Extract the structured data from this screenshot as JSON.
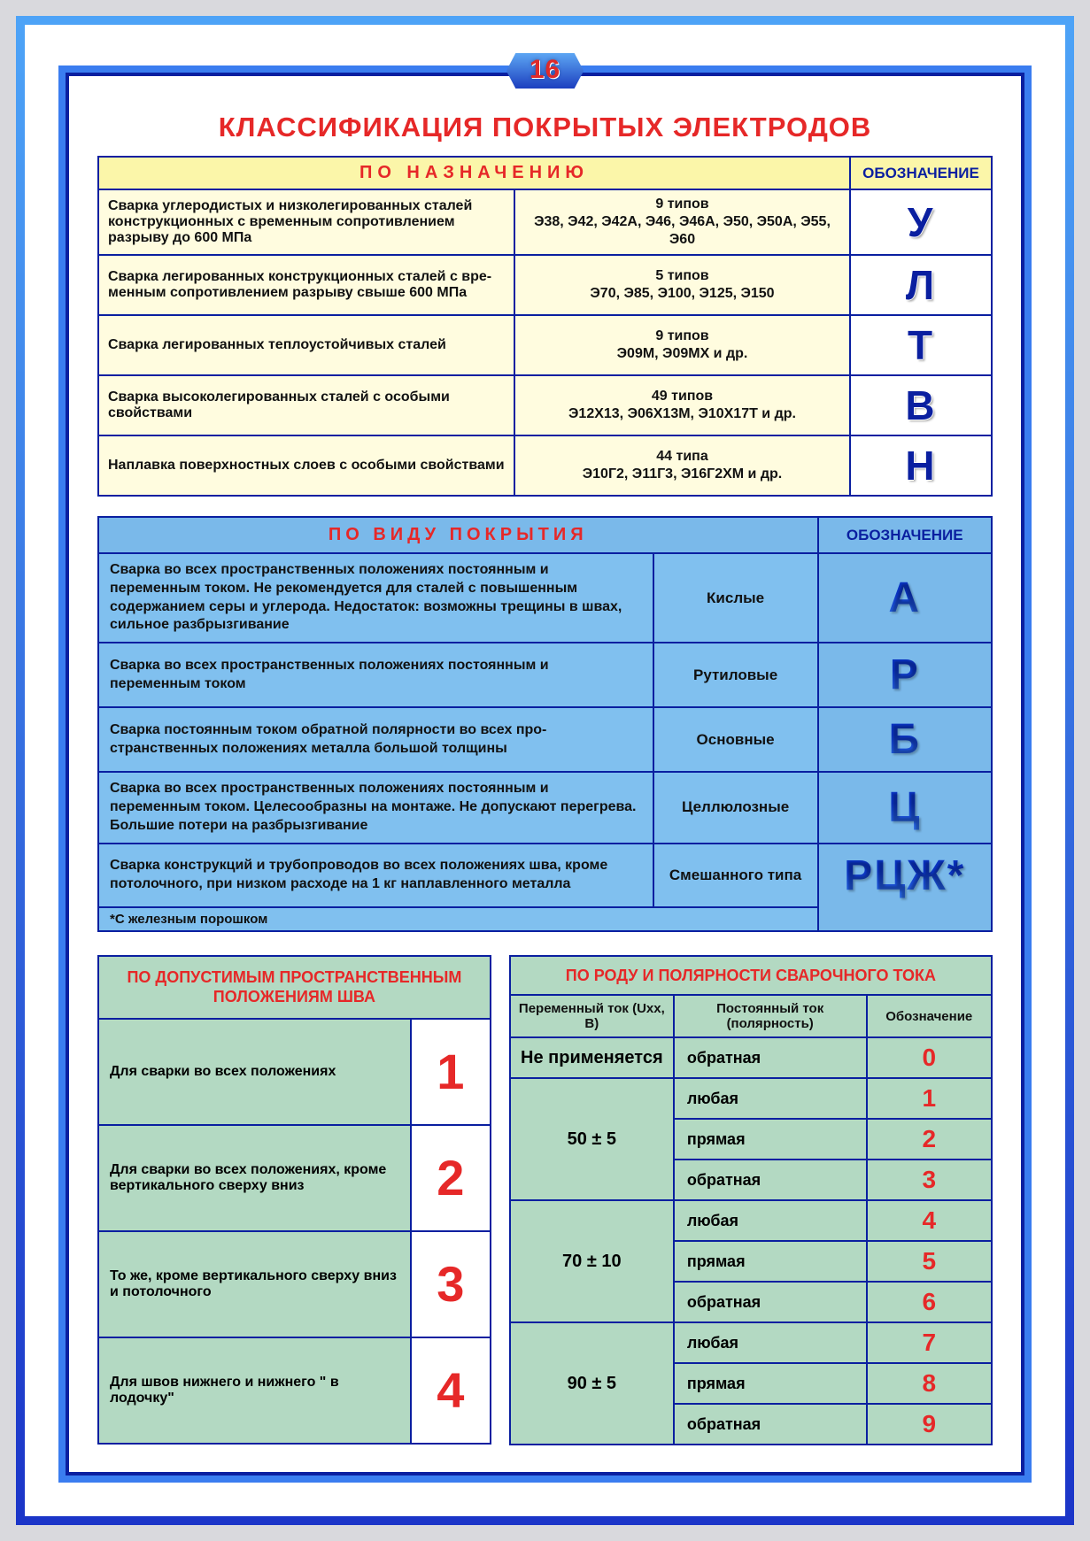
{
  "page_number": "16",
  "title": "КЛАССИФИКАЦИЯ ПОКРЫТЫХ ЭЛЕКТРОДОВ",
  "colors": {
    "outer_border": "#3a7df0",
    "inner_border": "#0a1fa0",
    "title_red": "#e62828",
    "yellow_hdr": "#fbf6a9",
    "yellow_row": "#fffcdf",
    "blue_row": "#80c0ef",
    "blue_hdr": "#7ab9ea",
    "green": "#b3d9c2"
  },
  "table1": {
    "header_left": "ПО   НАЗНАЧЕНИЮ",
    "header_right": "ОБОЗНАЧЕНИЕ",
    "rows": [
      {
        "desc": "Сварка углеродистых и низколегированных сталей конструкционных с временным сопротивлением разрыву до 600 МПа",
        "types_line1": "9 типов",
        "types_line2": "Э38, Э42, Э42А, Э46, Э46А, Э50, Э50А, Э55, Э60",
        "mark": "У"
      },
      {
        "desc": "Сварка легированных конструкционных сталей с вре­менным сопротивлением разрыву свыше 600 МПа",
        "types_line1": "5 типов",
        "types_line2": "Э70, Э85, Э100, Э125, Э150",
        "mark": "Л"
      },
      {
        "desc": "Сварка легированных теплоустойчивых сталей",
        "types_line1": "9 типов",
        "types_line2": "Э09М, Э09МХ и др.",
        "mark": "Т"
      },
      {
        "desc": "Сварка высоколегированных сталей с особыми свойствами",
        "types_line1": "49 типов",
        "types_line2": "Э12Х13, Э06Х13М, Э10Х17Т и др.",
        "mark": "В"
      },
      {
        "desc": "Наплавка поверхностных слоев с особыми свойствами",
        "types_line1": "44 типа",
        "types_line2": "Э10Г2, Э11Г3, Э16Г2ХМ и др.",
        "mark": "Н"
      }
    ]
  },
  "table2": {
    "header_left": "ПО  ВИДУ  ПОКРЫТИЯ",
    "header_right": "ОБОЗНАЧЕНИЕ",
    "rows": [
      {
        "desc": "Сварка во всех пространственных положениях постоянным и переменным током. Не рекомендуется для сталей с повы­шенным содержанием серы и углерода. Недостаток: возмо­жны трещины в швах, сильное разбрызгивание",
        "kind": "Кислые",
        "mark": "А"
      },
      {
        "desc": "Сварка во всех пространственных положениях постоянным и переменным током",
        "kind": "Рутиловые",
        "mark": "Р"
      },
      {
        "desc": "Сварка постоянным током обратной полярности во всех про­странственных положениях металла большой толщины",
        "kind": "Основные",
        "mark": "Б"
      },
      {
        "desc": "Сварка во всех пространственных положениях постоянным и переменным током. Целесообразны на монтаже. Не допус­кают перегрева. Большие потери на разбрызгивание",
        "kind": "Целлюлозные",
        "mark": "Ц"
      },
      {
        "desc": "Сварка конструкций и трубопроводов во всех положениях шва, кроме потолочного, при низком расходе на 1 кг на­плавленного металла",
        "kind": "Смешанного типа",
        "mark": "РЦЖ*"
      }
    ],
    "footnote": "*С железным порошком"
  },
  "table3": {
    "header": "ПО ДОПУСТИМЫМ ПРОСТРАНСТВЕННЫМ ПОЛОЖЕНИЯМ ШВА",
    "rows": [
      {
        "desc": "Для сварки во всех положениях",
        "num": "1"
      },
      {
        "desc": "Для сварки во всех положениях, кроме вертикального сверху вниз",
        "num": "2"
      },
      {
        "desc": "То же, кроме вертикального сверху вниз и потолочного",
        "num": "3"
      },
      {
        "desc": "Для швов нижнего и нижнего \" в лодочку\"",
        "num": "4"
      }
    ]
  },
  "table4": {
    "header": "ПО РОДУ И ПОЛЯРНОСТИ СВАРОЧНОГО ТОКА",
    "col1": "Переменный ток (Uхх, В)",
    "col2": "Постоянный ток (полярность)",
    "col3": "Обозна­чение",
    "groups": [
      {
        "ac": "Не применяется",
        "ac_span": 1,
        "rows": [
          {
            "pol": "обратная",
            "num": "0"
          }
        ]
      },
      {
        "ac": "50 ± 5",
        "ac_span": 3,
        "rows": [
          {
            "pol": "любая",
            "num": "1"
          },
          {
            "pol": "прямая",
            "num": "2"
          },
          {
            "pol": "обратная",
            "num": "3"
          }
        ]
      },
      {
        "ac": "70 ± 10",
        "ac_span": 3,
        "rows": [
          {
            "pol": "любая",
            "num": "4"
          },
          {
            "pol": "прямая",
            "num": "5"
          },
          {
            "pol": "обратная",
            "num": "6"
          }
        ]
      },
      {
        "ac": "90 ± 5",
        "ac_span": 3,
        "rows": [
          {
            "pol": "любая",
            "num": "7"
          },
          {
            "pol": "прямая",
            "num": "8"
          },
          {
            "pol": "обратная",
            "num": "9"
          }
        ]
      }
    ]
  }
}
